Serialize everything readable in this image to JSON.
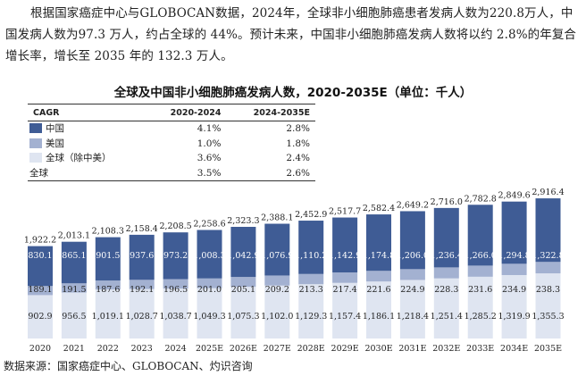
{
  "intro": "根据国家癌症中心与GLOBOCAN数据，2024年，全球非小细胞肺癌患者发病人数为220.8万人，中国发病人数为97.3 万人，约占全球的 44%。预计未来，中国非小细胞肺癌发病人数将以约 2.8%的年复合增长率，增长至 2035 年的 132.3 万人。",
  "source": "数据来源：国家癌症中心、GLOBOCAN、灼识咨询",
  "colors": {
    "china": "#3f5c95",
    "us": "#a3b1d1",
    "global_ex": "#dfe5f1"
  },
  "chart_data": {
    "type": "bar",
    "stacked": true,
    "title": "全球及中国非小细胞肺癌发病人数，2020-2035E（单位：千人）",
    "categories": [
      "2020",
      "2021",
      "2022",
      "2023",
      "2024",
      "2025E",
      "2026E",
      "2027E",
      "2028E",
      "2029E",
      "2030E",
      "2031E",
      "2032E",
      "2033E",
      "2034E",
      "2035E"
    ],
    "series": [
      {
        "name": "全球（除中美）",
        "values": [
          902.9,
          956.5,
          1019.1,
          1028.7,
          1038.7,
          1049.3,
          1075.3,
          1102.0,
          1129.3,
          1157.4,
          1186.1,
          1218.4,
          1251.4,
          1285.2,
          1319.9,
          1355.3
        ]
      },
      {
        "name": "美国",
        "values": [
          189.1,
          191.5,
          187.6,
          192.1,
          196.5,
          201.0,
          205.1,
          209.2,
          213.3,
          217.4,
          221.6,
          224.9,
          228.3,
          231.6,
          234.9,
          238.3
        ]
      },
      {
        "name": "中国",
        "values": [
          830.1,
          865.1,
          901.5,
          937.6,
          973.2,
          1008.3,
          1042.9,
          1076.9,
          1110.2,
          1142.9,
          1174.8,
          1206.0,
          1236.4,
          1266.0,
          1294.8,
          1322.8
        ]
      }
    ],
    "totals": [
      1922.2,
      2013.1,
      2108.3,
      2158.4,
      2208.5,
      2258.6,
      2323.3,
      2388.1,
      2452.9,
      2517.7,
      2582.4,
      2649.2,
      2716.0,
      2782.8,
      2849.6,
      2916.4
    ],
    "cagr_table": {
      "headers": [
        "CAGR",
        "2020-2024",
        "2024-2035E"
      ],
      "rows": [
        {
          "label": "中国",
          "v1": "4.1%",
          "v2": "2.8%"
        },
        {
          "label": "美国",
          "v1": "1.0%",
          "v2": "1.8%"
        },
        {
          "label": "全球（除中美）",
          "v1": "3.6%",
          "v2": "2.4%"
        },
        {
          "label": "全球",
          "v1": "3.5%",
          "v2": "2.6%"
        }
      ]
    }
  }
}
